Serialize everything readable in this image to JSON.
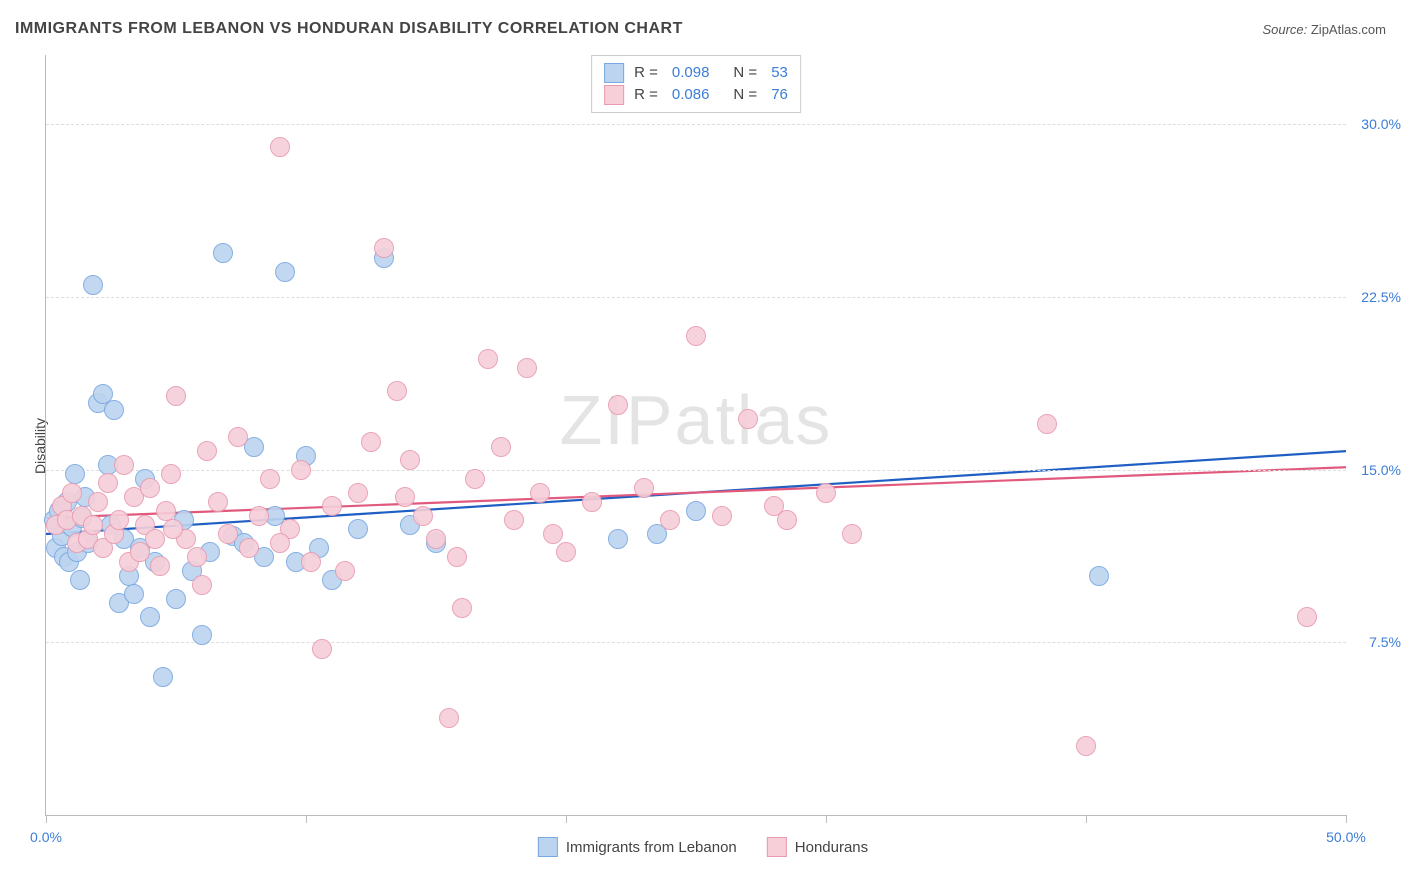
{
  "title": "IMMIGRANTS FROM LEBANON VS HONDURAN DISABILITY CORRELATION CHART",
  "source_label": "Source: ",
  "source_value": "ZipAtlas.com",
  "ylabel": "Disability",
  "watermark": "ZIPatlas",
  "chart": {
    "type": "scatter",
    "xlim": [
      0,
      50
    ],
    "ylim": [
      0,
      33
    ],
    "xtick_percent": [
      0,
      10,
      20,
      30,
      40,
      50
    ],
    "xtick_labels": [
      "0.0%",
      "",
      "",
      "",
      "",
      "50.0%"
    ],
    "ytick_percent": [
      7.5,
      15.0,
      22.5,
      30.0
    ],
    "ytick_labels": [
      "7.5%",
      "15.0%",
      "22.5%",
      "30.0%"
    ],
    "grid_color": "#dddddd",
    "axis_color": "#bbbbbb",
    "label_color": "#3b7dd8",
    "background_color": "#ffffff",
    "marker_radius": 10,
    "marker_border_width": 1.5,
    "marker_fill_opacity": 0.35,
    "trend_line_width": 2.2,
    "series": [
      {
        "id": "lebanon",
        "label": "Immigrants from Lebanon",
        "stroke": "#7aa8e0",
        "fill": "#bcd4f0",
        "trend_color": "#1f5fc4",
        "R": 0.098,
        "N": 53,
        "trend_y_at_x0": 12.2,
        "trend_y_at_x50": 15.8,
        "points": [
          [
            0.3,
            12.8
          ],
          [
            0.4,
            11.6
          ],
          [
            0.5,
            13.2
          ],
          [
            0.6,
            12.1
          ],
          [
            0.7,
            11.2
          ],
          [
            0.8,
            13.6
          ],
          [
            0.9,
            11.0
          ],
          [
            1.0,
            12.5
          ],
          [
            1.1,
            14.8
          ],
          [
            1.2,
            11.4
          ],
          [
            1.3,
            10.2
          ],
          [
            1.4,
            12.9
          ],
          [
            1.5,
            13.8
          ],
          [
            1.6,
            11.8
          ],
          [
            1.8,
            23.0
          ],
          [
            2.0,
            17.9
          ],
          [
            2.2,
            18.3
          ],
          [
            2.4,
            15.2
          ],
          [
            2.6,
            17.6
          ],
          [
            2.8,
            9.2
          ],
          [
            3.0,
            12.0
          ],
          [
            3.2,
            10.4
          ],
          [
            3.4,
            9.6
          ],
          [
            3.6,
            11.6
          ],
          [
            3.8,
            14.6
          ],
          [
            4.0,
            8.6
          ],
          [
            4.2,
            11.0
          ],
          [
            4.5,
            6.0
          ],
          [
            5.0,
            9.4
          ],
          [
            5.3,
            12.8
          ],
          [
            5.6,
            10.6
          ],
          [
            6.0,
            7.8
          ],
          [
            6.3,
            11.4
          ],
          [
            6.8,
            24.4
          ],
          [
            7.2,
            12.1
          ],
          [
            7.6,
            11.8
          ],
          [
            8.0,
            16.0
          ],
          [
            8.4,
            11.2
          ],
          [
            8.8,
            13.0
          ],
          [
            9.2,
            23.6
          ],
          [
            9.6,
            11.0
          ],
          [
            10.0,
            15.6
          ],
          [
            10.5,
            11.6
          ],
          [
            11.0,
            10.2
          ],
          [
            12.0,
            12.4
          ],
          [
            13.0,
            24.2
          ],
          [
            14.0,
            12.6
          ],
          [
            15.0,
            11.8
          ],
          [
            22.0,
            12.0
          ],
          [
            23.5,
            12.2
          ],
          [
            25.0,
            13.2
          ],
          [
            40.5,
            10.4
          ],
          [
            2.5,
            12.6
          ]
        ]
      },
      {
        "id": "honduran",
        "label": "Hondurans",
        "stroke": "#e89bb0",
        "fill": "#f6cfd9",
        "trend_color": "#e15a7d",
        "R": 0.086,
        "N": 76,
        "trend_y_at_x0": 12.9,
        "trend_y_at_x50": 15.1,
        "points": [
          [
            0.4,
            12.6
          ],
          [
            0.6,
            13.4
          ],
          [
            0.8,
            12.8
          ],
          [
            1.0,
            14.0
          ],
          [
            1.2,
            11.8
          ],
          [
            1.4,
            13.0
          ],
          [
            1.6,
            12.0
          ],
          [
            1.8,
            12.6
          ],
          [
            2.0,
            13.6
          ],
          [
            2.2,
            11.6
          ],
          [
            2.4,
            14.4
          ],
          [
            2.6,
            12.2
          ],
          [
            2.8,
            12.8
          ],
          [
            3.0,
            15.2
          ],
          [
            3.2,
            11.0
          ],
          [
            3.4,
            13.8
          ],
          [
            3.6,
            11.4
          ],
          [
            3.8,
            12.6
          ],
          [
            4.0,
            14.2
          ],
          [
            4.2,
            12.0
          ],
          [
            4.4,
            10.8
          ],
          [
            4.6,
            13.2
          ],
          [
            4.8,
            14.8
          ],
          [
            5.0,
            18.2
          ],
          [
            5.4,
            12.0
          ],
          [
            5.8,
            11.2
          ],
          [
            6.2,
            15.8
          ],
          [
            6.6,
            13.6
          ],
          [
            7.0,
            12.2
          ],
          [
            7.4,
            16.4
          ],
          [
            7.8,
            11.6
          ],
          [
            8.2,
            13.0
          ],
          [
            8.6,
            14.6
          ],
          [
            9.0,
            29.0
          ],
          [
            9.4,
            12.4
          ],
          [
            9.8,
            15.0
          ],
          [
            10.2,
            11.0
          ],
          [
            10.6,
            7.2
          ],
          [
            11.0,
            13.4
          ],
          [
            11.5,
            10.6
          ],
          [
            12.0,
            14.0
          ],
          [
            12.5,
            16.2
          ],
          [
            13.0,
            24.6
          ],
          [
            13.5,
            18.4
          ],
          [
            14.0,
            15.4
          ],
          [
            14.5,
            13.0
          ],
          [
            15.0,
            12.0
          ],
          [
            15.5,
            4.2
          ],
          [
            16.0,
            9.0
          ],
          [
            16.5,
            14.6
          ],
          [
            17.0,
            19.8
          ],
          [
            17.5,
            16.0
          ],
          [
            18.0,
            12.8
          ],
          [
            18.5,
            19.4
          ],
          [
            19.0,
            14.0
          ],
          [
            19.5,
            12.2
          ],
          [
            20.0,
            11.4
          ],
          [
            21.0,
            13.6
          ],
          [
            22.0,
            17.8
          ],
          [
            23.0,
            14.2
          ],
          [
            24.0,
            12.8
          ],
          [
            25.0,
            20.8
          ],
          [
            26.0,
            13.0
          ],
          [
            27.0,
            17.2
          ],
          [
            28.0,
            13.4
          ],
          [
            28.5,
            12.8
          ],
          [
            30.0,
            14.0
          ],
          [
            31.0,
            12.2
          ],
          [
            38.5,
            17.0
          ],
          [
            40.0,
            3.0
          ],
          [
            48.5,
            8.6
          ],
          [
            15.8,
            11.2
          ],
          [
            6.0,
            10.0
          ],
          [
            9.0,
            11.8
          ],
          [
            13.8,
            13.8
          ],
          [
            4.9,
            12.4
          ]
        ]
      }
    ]
  }
}
